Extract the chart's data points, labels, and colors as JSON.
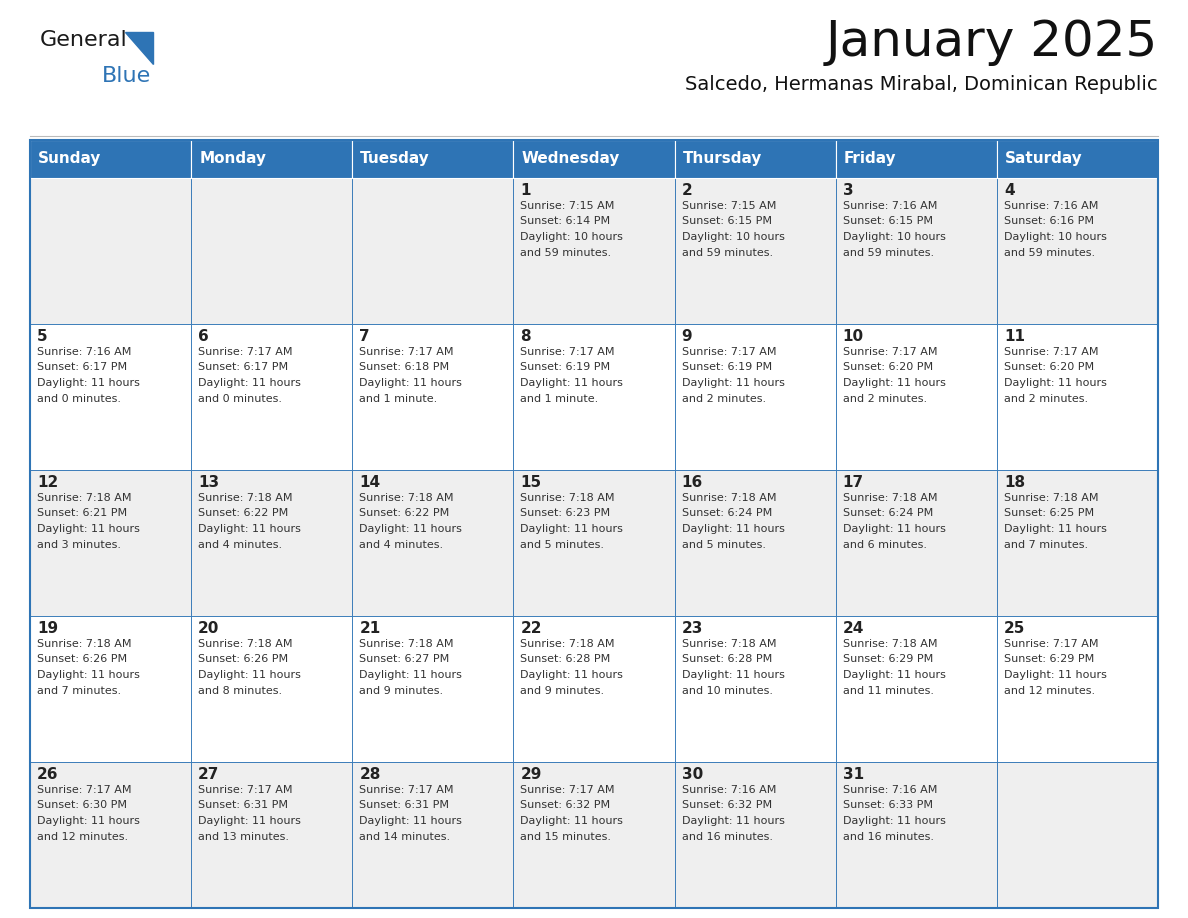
{
  "title": "January 2025",
  "subtitle": "Salcedo, Hermanas Mirabal, Dominican Republic",
  "days_of_week": [
    "Sunday",
    "Monday",
    "Tuesday",
    "Wednesday",
    "Thursday",
    "Friday",
    "Saturday"
  ],
  "header_bg": "#2E74B5",
  "header_text": "#FFFFFF",
  "cell_bg_light": "#FFFFFF",
  "cell_bg_dark": "#EFEFEF",
  "day_num_color": "#222222",
  "info_text_color": "#333333",
  "border_color": "#2E74B5",
  "title_color": "#111111",
  "subtitle_color": "#111111",
  "logo_general_color": "#1A1A1A",
  "logo_blue_color": "#2E74B5",
  "weeks": [
    [
      {
        "day": null,
        "sunrise": null,
        "sunset": null,
        "daylight": null
      },
      {
        "day": null,
        "sunrise": null,
        "sunset": null,
        "daylight": null
      },
      {
        "day": null,
        "sunrise": null,
        "sunset": null,
        "daylight": null
      },
      {
        "day": 1,
        "sunrise": "7:15 AM",
        "sunset": "6:14 PM",
        "daylight": "10 hours and 59 minutes."
      },
      {
        "day": 2,
        "sunrise": "7:15 AM",
        "sunset": "6:15 PM",
        "daylight": "10 hours and 59 minutes."
      },
      {
        "day": 3,
        "sunrise": "7:16 AM",
        "sunset": "6:15 PM",
        "daylight": "10 hours and 59 minutes."
      },
      {
        "day": 4,
        "sunrise": "7:16 AM",
        "sunset": "6:16 PM",
        "daylight": "10 hours and 59 minutes."
      }
    ],
    [
      {
        "day": 5,
        "sunrise": "7:16 AM",
        "sunset": "6:17 PM",
        "daylight": "11 hours and 0 minutes."
      },
      {
        "day": 6,
        "sunrise": "7:17 AM",
        "sunset": "6:17 PM",
        "daylight": "11 hours and 0 minutes."
      },
      {
        "day": 7,
        "sunrise": "7:17 AM",
        "sunset": "6:18 PM",
        "daylight": "11 hours and 1 minute."
      },
      {
        "day": 8,
        "sunrise": "7:17 AM",
        "sunset": "6:19 PM",
        "daylight": "11 hours and 1 minute."
      },
      {
        "day": 9,
        "sunrise": "7:17 AM",
        "sunset": "6:19 PM",
        "daylight": "11 hours and 2 minutes."
      },
      {
        "day": 10,
        "sunrise": "7:17 AM",
        "sunset": "6:20 PM",
        "daylight": "11 hours and 2 minutes."
      },
      {
        "day": 11,
        "sunrise": "7:17 AM",
        "sunset": "6:20 PM",
        "daylight": "11 hours and 2 minutes."
      }
    ],
    [
      {
        "day": 12,
        "sunrise": "7:18 AM",
        "sunset": "6:21 PM",
        "daylight": "11 hours and 3 minutes."
      },
      {
        "day": 13,
        "sunrise": "7:18 AM",
        "sunset": "6:22 PM",
        "daylight": "11 hours and 4 minutes."
      },
      {
        "day": 14,
        "sunrise": "7:18 AM",
        "sunset": "6:22 PM",
        "daylight": "11 hours and 4 minutes."
      },
      {
        "day": 15,
        "sunrise": "7:18 AM",
        "sunset": "6:23 PM",
        "daylight": "11 hours and 5 minutes."
      },
      {
        "day": 16,
        "sunrise": "7:18 AM",
        "sunset": "6:24 PM",
        "daylight": "11 hours and 5 minutes."
      },
      {
        "day": 17,
        "sunrise": "7:18 AM",
        "sunset": "6:24 PM",
        "daylight": "11 hours and 6 minutes."
      },
      {
        "day": 18,
        "sunrise": "7:18 AM",
        "sunset": "6:25 PM",
        "daylight": "11 hours and 7 minutes."
      }
    ],
    [
      {
        "day": 19,
        "sunrise": "7:18 AM",
        "sunset": "6:26 PM",
        "daylight": "11 hours and 7 minutes."
      },
      {
        "day": 20,
        "sunrise": "7:18 AM",
        "sunset": "6:26 PM",
        "daylight": "11 hours and 8 minutes."
      },
      {
        "day": 21,
        "sunrise": "7:18 AM",
        "sunset": "6:27 PM",
        "daylight": "11 hours and 9 minutes."
      },
      {
        "day": 22,
        "sunrise": "7:18 AM",
        "sunset": "6:28 PM",
        "daylight": "11 hours and 9 minutes."
      },
      {
        "day": 23,
        "sunrise": "7:18 AM",
        "sunset": "6:28 PM",
        "daylight": "11 hours and 10 minutes."
      },
      {
        "day": 24,
        "sunrise": "7:18 AM",
        "sunset": "6:29 PM",
        "daylight": "11 hours and 11 minutes."
      },
      {
        "day": 25,
        "sunrise": "7:17 AM",
        "sunset": "6:29 PM",
        "daylight": "11 hours and 12 minutes."
      }
    ],
    [
      {
        "day": 26,
        "sunrise": "7:17 AM",
        "sunset": "6:30 PM",
        "daylight": "11 hours and 12 minutes."
      },
      {
        "day": 27,
        "sunrise": "7:17 AM",
        "sunset": "6:31 PM",
        "daylight": "11 hours and 13 minutes."
      },
      {
        "day": 28,
        "sunrise": "7:17 AM",
        "sunset": "6:31 PM",
        "daylight": "11 hours and 14 minutes."
      },
      {
        "day": 29,
        "sunrise": "7:17 AM",
        "sunset": "6:32 PM",
        "daylight": "11 hours and 15 minutes."
      },
      {
        "day": 30,
        "sunrise": "7:16 AM",
        "sunset": "6:32 PM",
        "daylight": "11 hours and 16 minutes."
      },
      {
        "day": 31,
        "sunrise": "7:16 AM",
        "sunset": "6:33 PM",
        "daylight": "11 hours and 16 minutes."
      },
      {
        "day": null,
        "sunrise": null,
        "sunset": null,
        "daylight": null
      }
    ]
  ]
}
